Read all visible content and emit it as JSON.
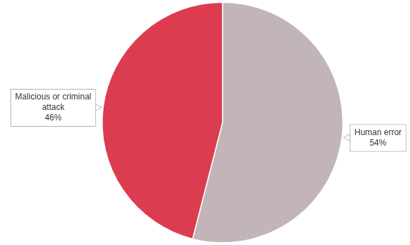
{
  "chart_data": {
    "type": "pie",
    "categories": [
      "Human error",
      "Malicious or criminal attack"
    ],
    "values": [
      54,
      46
    ],
    "value_labels": [
      "54%",
      "46%"
    ],
    "colors": [
      "#c2b5b7",
      "#dc3c50"
    ],
    "data_labels": true
  }
}
